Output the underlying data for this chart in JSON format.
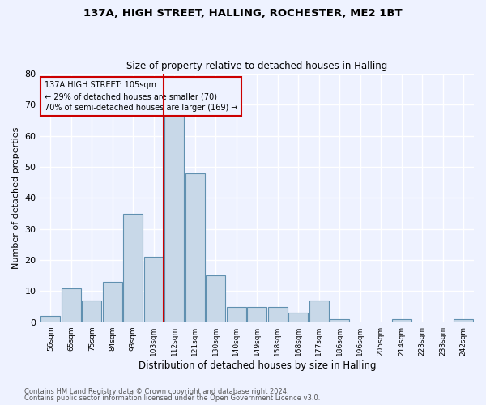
{
  "title_line1": "137A, HIGH STREET, HALLING, ROCHESTER, ME2 1BT",
  "title_line2": "Size of property relative to detached houses in Halling",
  "xlabel": "Distribution of detached houses by size in Halling",
  "ylabel": "Number of detached properties",
  "categories": [
    "56sqm",
    "65sqm",
    "75sqm",
    "84sqm",
    "93sqm",
    "103sqm",
    "112sqm",
    "121sqm",
    "130sqm",
    "140sqm",
    "149sqm",
    "158sqm",
    "168sqm",
    "177sqm",
    "186sqm",
    "196sqm",
    "205sqm",
    "214sqm",
    "223sqm",
    "233sqm",
    "242sqm"
  ],
  "values": [
    2,
    11,
    7,
    13,
    35,
    21,
    67,
    48,
    15,
    5,
    5,
    5,
    3,
    7,
    1,
    0,
    0,
    1,
    0,
    0,
    1
  ],
  "bar_color": "#c8d8e8",
  "bar_edge_color": "#6090b0",
  "property_label": "137A HIGH STREET: 105sqm",
  "pct_smaller": "29% of detached houses are smaller (70)",
  "pct_larger": "70% of semi-detached houses are larger (169)",
  "vline_bin_index": 5,
  "ylim": [
    0,
    80
  ],
  "yticks": [
    0,
    10,
    20,
    30,
    40,
    50,
    60,
    70,
    80
  ],
  "annotation_box_color": "#cc0000",
  "vline_color": "#cc0000",
  "background_color": "#eef2ff",
  "grid_color": "#ffffff",
  "footer_line1": "Contains HM Land Registry data © Crown copyright and database right 2024.",
  "footer_line2": "Contains public sector information licensed under the Open Government Licence v3.0."
}
